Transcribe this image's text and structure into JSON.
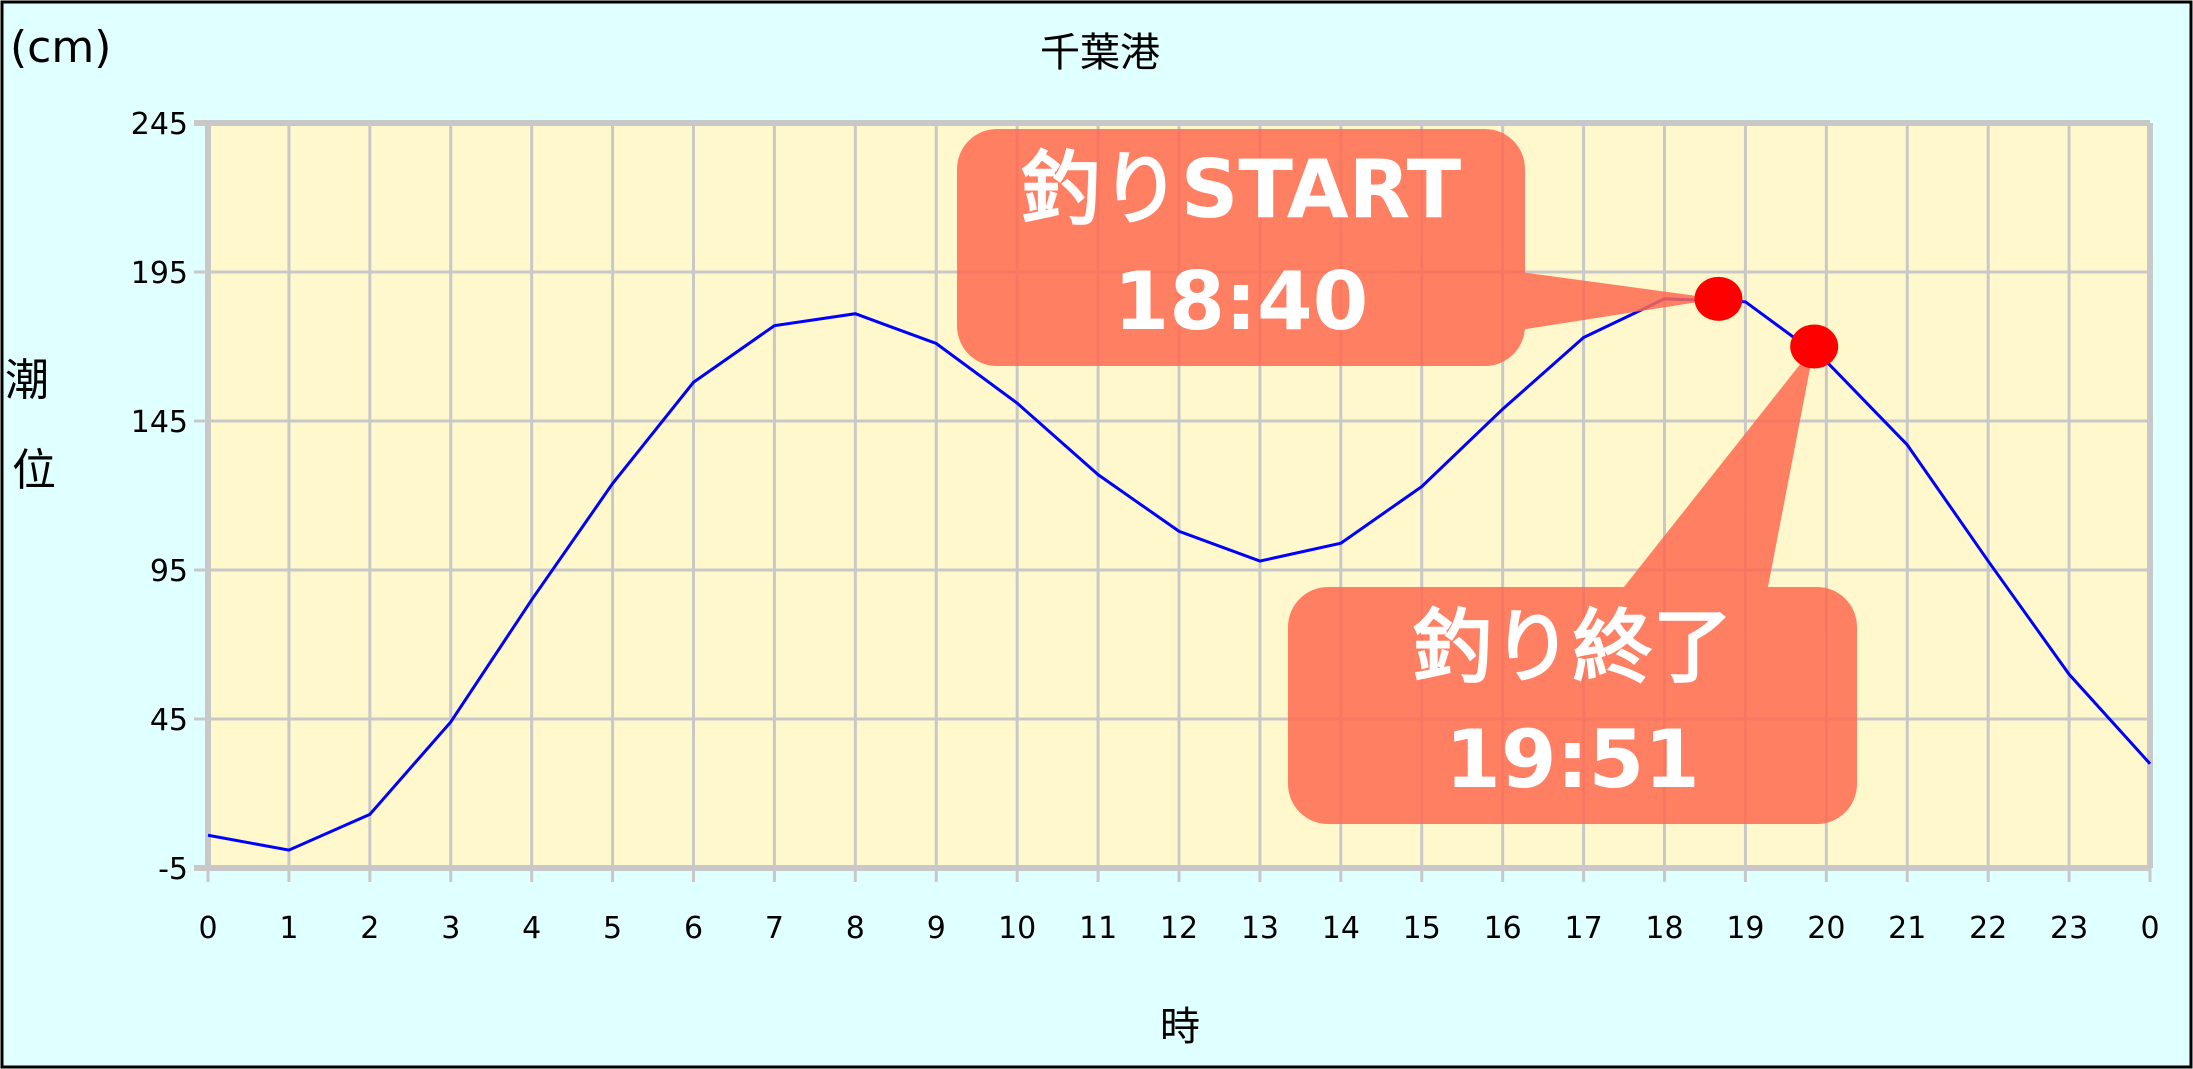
{
  "chart_data": {
    "type": "line",
    "title": "千葉港",
    "xlabel": "時",
    "ylabel": "潮位",
    "yunit": "(cm)",
    "x": [
      0,
      1,
      2,
      3,
      4,
      5,
      6,
      7,
      8,
      9,
      10,
      11,
      12,
      13,
      14,
      15,
      16,
      17,
      18,
      19,
      20,
      21,
      22,
      23,
      24
    ],
    "xtick_labels": [
      "0",
      "1",
      "2",
      "3",
      "4",
      "5",
      "6",
      "7",
      "8",
      "9",
      "10",
      "11",
      "12",
      "13",
      "14",
      "15",
      "16",
      "17",
      "18",
      "19",
      "20",
      "21",
      "22",
      "23",
      "0"
    ],
    "values": [
      6,
      1,
      13,
      44,
      85,
      124,
      158,
      177,
      181,
      171,
      151,
      127,
      108,
      98,
      104,
      123,
      149,
      173,
      186,
      185,
      165,
      137,
      98,
      60,
      30
    ],
    "yticks": [
      -5,
      45,
      95,
      145,
      195,
      245
    ],
    "ylim": [
      -5,
      245
    ],
    "xlim": [
      0,
      24
    ],
    "grid": true,
    "colors": {
      "line": "#0000ff",
      "plot_bg": "#fff8cc",
      "page_bg": "#e0ffff",
      "grid": "#c8c8c8",
      "marker": "#ff0000",
      "callout": "#ff6a50"
    },
    "annotations": [
      {
        "x": 18.667,
        "y": 186,
        "lines": [
          "釣りSTART",
          "18:40"
        ]
      },
      {
        "x": 19.85,
        "y": 170,
        "lines": [
          "釣り終了",
          "19:51"
        ]
      }
    ]
  }
}
